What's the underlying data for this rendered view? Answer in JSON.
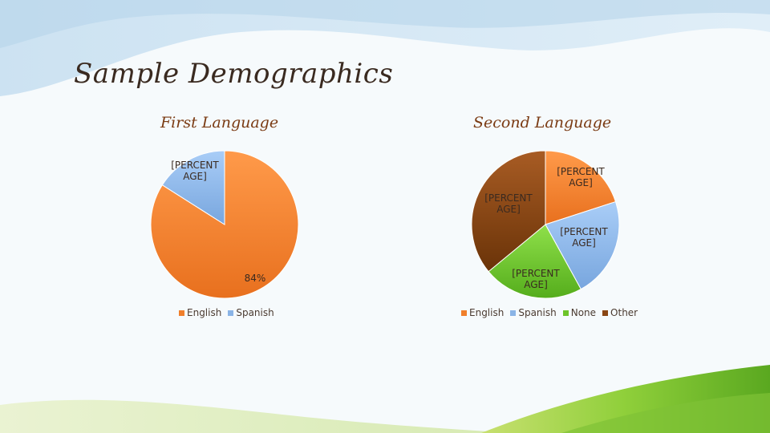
{
  "slide": {
    "title": "Sample Demographics"
  },
  "colors": {
    "english": "#f07f2b",
    "spanish": "#8ab4e6",
    "none": "#6dc42a",
    "other": "#8a4614"
  },
  "chart_data": [
    {
      "type": "pie",
      "title": "First Language",
      "categories": [
        "English",
        "Spanish"
      ],
      "values": [
        84,
        16
      ],
      "labels": [
        "84%",
        "[PERCENT AGE]"
      ],
      "legend": "bottom"
    },
    {
      "type": "pie",
      "title": "Second Language",
      "categories": [
        "English",
        "Spanish",
        "None",
        "Other"
      ],
      "values": [
        20,
        22,
        22,
        36
      ],
      "labels": [
        "[PERCENT AGE]",
        "[PERCENT AGE]",
        "[PERCENT AGE]",
        "[PERCENT AGE]"
      ],
      "legend": "bottom"
    }
  ]
}
